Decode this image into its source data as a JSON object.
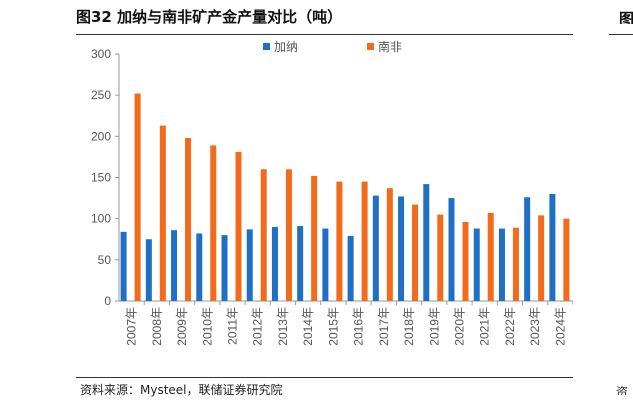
{
  "header": {
    "title": "图32 加纳与南非矿产金产量对比（吨）"
  },
  "footer": {
    "source": "资料来源：Mysteel，联储证券研究院"
  },
  "neighbor": {
    "edge_glyph": "图",
    "edge_mark": "资"
  },
  "colors": {
    "ghana": "#1F6FC5",
    "south_africa": "#F26A1B",
    "axis": "#9a9a9a",
    "text": "#555555"
  },
  "chart_data": {
    "type": "bar",
    "title": "图32 加纳与南非矿产金产量对比（吨）",
    "xlabel": "",
    "ylabel": "",
    "ylim": [
      0,
      300
    ],
    "yticks": [
      0,
      50,
      100,
      150,
      200,
      250,
      300
    ],
    "grid": false,
    "legend_position": "top-center",
    "categories": [
      "2007年",
      "2008年",
      "2009年",
      "2010年",
      "2011年",
      "2012年",
      "2013年",
      "2014年",
      "2015年",
      "2016年",
      "2017年",
      "2018年",
      "2019年",
      "2020年",
      "2021年",
      "2022年",
      "2023年",
      "2024年"
    ],
    "series": [
      {
        "name": "加纳",
        "color": "#1F6FC5",
        "values": [
          84,
          75,
          86,
          82,
          80,
          87,
          90,
          91,
          88,
          79,
          128,
          127,
          142,
          125,
          88,
          88,
          126,
          130
        ]
      },
      {
        "name": "南非",
        "color": "#F26A1B",
        "values": [
          252,
          213,
          198,
          189,
          181,
          160,
          160,
          152,
          145,
          145,
          137,
          117,
          105,
          96,
          107,
          89,
          104,
          100
        ]
      }
    ]
  }
}
